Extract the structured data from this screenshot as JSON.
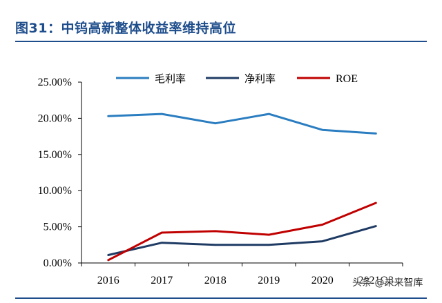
{
  "figure": {
    "title": "图31：中钨高新整体收益率维持高位",
    "watermark": "头条 @未来智库"
  },
  "colors": {
    "title": "#1f4e8c",
    "gross_margin": "#2a7dc0",
    "net_margin": "#1f3b64",
    "roe": "#c00000"
  },
  "chart_data": {
    "type": "line",
    "title": "",
    "xlabel": "",
    "ylabel": "",
    "categories": [
      "2016",
      "2017",
      "2018",
      "2019",
      "2020",
      "2021Q3"
    ],
    "y_ticks": [
      "0.00%",
      "5.00%",
      "10.00%",
      "15.00%",
      "20.00%",
      "25.00%"
    ],
    "ylim": [
      0,
      25
    ],
    "y_unit": "%",
    "grid": false,
    "legend_position": "top",
    "series": [
      {
        "name": "毛利率",
        "color": "#2a7dc0",
        "values": [
          20.3,
          20.6,
          19.3,
          20.6,
          18.4,
          17.9
        ]
      },
      {
        "name": "净利率",
        "color": "#1f3b64",
        "values": [
          1.1,
          2.8,
          2.5,
          2.5,
          3.0,
          5.1
        ]
      },
      {
        "name": "ROE",
        "color": "#c00000",
        "values": [
          0.4,
          4.2,
          4.4,
          3.9,
          5.3,
          8.3
        ]
      }
    ]
  }
}
